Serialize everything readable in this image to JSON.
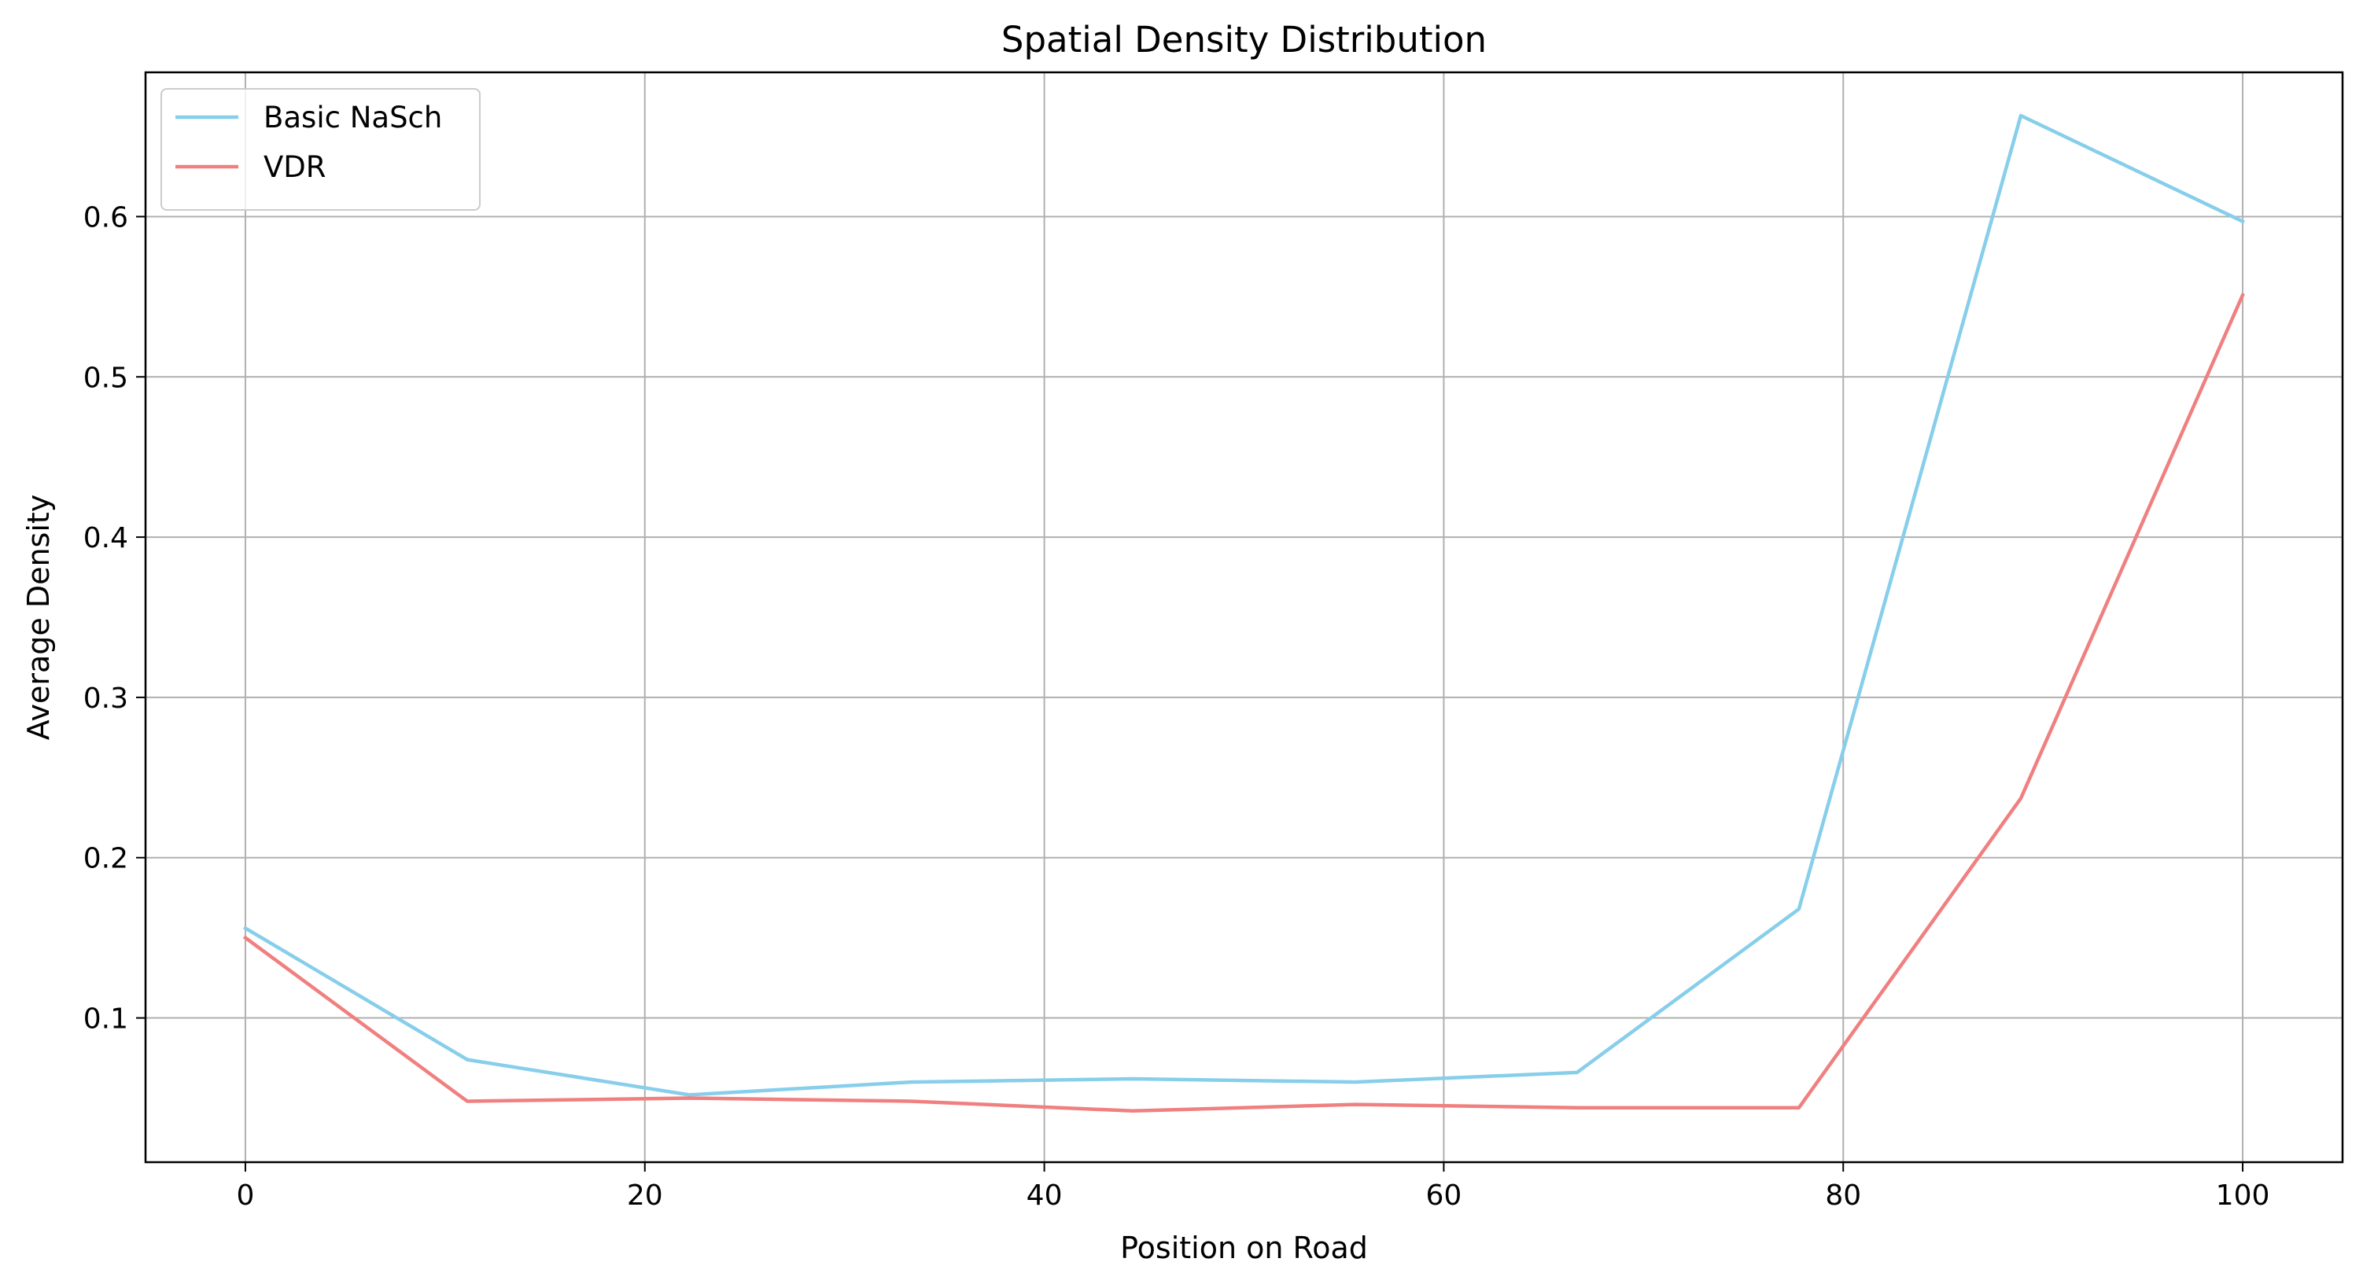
{
  "chart_data": {
    "type": "line",
    "title": "Spatial Density Distribution",
    "xlabel": "Position on Road",
    "ylabel": "Average Density",
    "xlim": [
      -5,
      105
    ],
    "ylim": [
      0.01,
      0.69
    ],
    "xticks": [
      0,
      20,
      40,
      60,
      80,
      100
    ],
    "yticks": [
      0.1,
      0.2,
      0.3,
      0.4,
      0.5,
      0.6
    ],
    "xtick_labels": [
      "0",
      "20",
      "40",
      "60",
      "80",
      "100"
    ],
    "ytick_labels": [
      "0.1",
      "0.2",
      "0.3",
      "0.4",
      "0.5",
      "0.6"
    ],
    "grid": true,
    "legend_position": "top-left",
    "x": [
      0,
      11.11,
      22.22,
      33.33,
      44.44,
      55.56,
      66.67,
      77.78,
      88.89,
      100
    ],
    "series": [
      {
        "name": "Basic NaSch",
        "color": "#87ceeb",
        "values": [
          0.156,
          0.074,
          0.052,
          0.06,
          0.062,
          0.06,
          0.066,
          0.168,
          0.663,
          0.597
        ]
      },
      {
        "name": "VDR",
        "color": "#f08080",
        "values": [
          0.15,
          0.048,
          0.05,
          0.048,
          0.042,
          0.046,
          0.044,
          0.044,
          0.237,
          0.551
        ]
      }
    ]
  }
}
